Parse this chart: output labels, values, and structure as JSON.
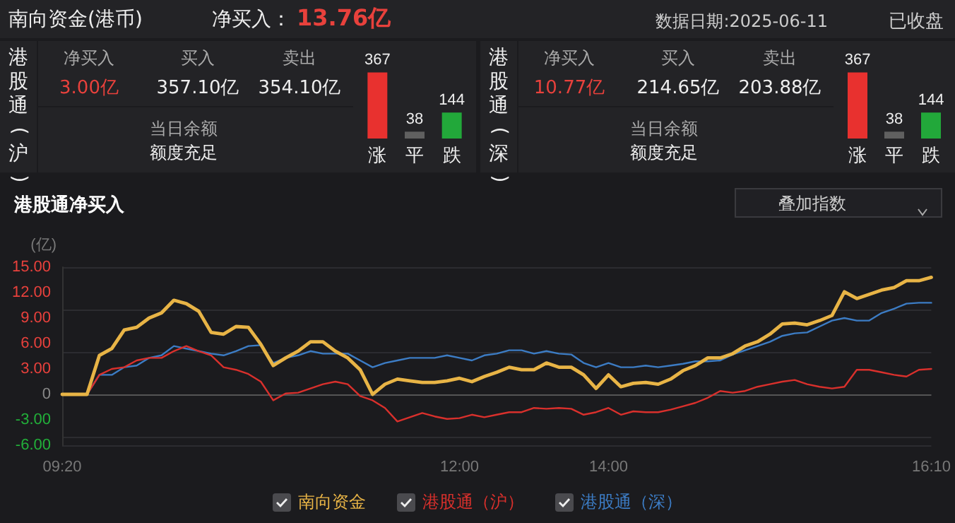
{
  "chart_data": [
    {
      "type": "other",
      "title": "南向资金(港币)",
      "annotations": [
        "净买入：",
        "13.76亿",
        "数据日期:2025-06-11",
        "已收盘"
      ]
    },
    {
      "type": "other",
      "title": "港股通(沪)",
      "annotations": [
        "净买入",
        "3.00亿",
        "买入",
        "357.10亿",
        "卖出",
        "354.10亿",
        "当日余额",
        "额度充足"
      ]
    },
    {
      "type": "bar",
      "categories": [
        "涨",
        "平",
        "跌"
      ],
      "values": [
        367,
        38,
        144
      ],
      "colors": [
        "#e8312f",
        "#606060",
        "#22a83a"
      ],
      "data_labels": true,
      "tick_labels": "x"
    },
    {
      "type": "other",
      "title": "港股通(深)",
      "annotations": [
        "净买入",
        "10.77亿",
        "买入",
        "214.65亿",
        "卖出",
        "203.88亿",
        "当日余额",
        "额度充足"
      ]
    },
    {
      "type": "bar",
      "categories": [
        "涨",
        "平",
        "跌"
      ],
      "values": [
        367,
        38,
        144
      ],
      "colors": [
        "#e8312f",
        "#606060",
        "#22a83a"
      ],
      "data_labels": true,
      "tick_labels": "x"
    },
    {
      "type": "line",
      "title": "港股通净买入",
      "ylabel": "(亿)",
      "annotations": [
        "叠加指数"
      ],
      "categories": [
        "09:20",
        null,
        null,
        null,
        null,
        null,
        null,
        null,
        null,
        null,
        null,
        null,
        null,
        null,
        null,
        null,
        null,
        null,
        null,
        null,
        null,
        null,
        null,
        null,
        null,
        null,
        null,
        null,
        null,
        null,
        null,
        null,
        "12:00",
        null,
        null,
        null,
        null,
        null,
        null,
        null,
        null,
        null,
        null,
        null,
        "14:00",
        null,
        null,
        null,
        null,
        null,
        null,
        null,
        null,
        null,
        null,
        null,
        null,
        null,
        null,
        null,
        null,
        null,
        null,
        null,
        null,
        null,
        null,
        null,
        null,
        null,
        "16:10"
      ],
      "series": [
        {
          "name": "南向资金",
          "color": "#e8b446",
          "values": [
            0,
            0,
            0,
            4.6,
            5.4,
            7.6,
            7.9,
            9.0,
            9.6,
            11.1,
            10.7,
            9.8,
            7.3,
            7.1,
            8.0,
            7.9,
            5.9,
            3.4,
            4.3,
            5.1,
            6.2,
            6.2,
            5.1,
            4.3,
            2.9,
            0,
            1.2,
            1.8,
            1.6,
            1.4,
            1.4,
            1.6,
            1.9,
            1.5,
            2.1,
            2.6,
            3.2,
            2.9,
            2.9,
            3.7,
            3.2,
            3.2,
            2.3,
            0.7,
            2.3,
            0.9,
            1.3,
            1.4,
            1.2,
            1.8,
            2.8,
            3.4,
            4.3,
            4.3,
            4.8,
            5.7,
            6.2,
            7.1,
            8.3,
            8.4,
            8.2,
            8.7,
            9.3,
            12.1,
            11.3,
            11.8,
            12.3,
            12.6,
            13.4,
            13.4,
            13.8
          ]
        },
        {
          "name": "港股通（沪）",
          "color": "#d9302c",
          "values": [
            0,
            0,
            0,
            2.3,
            3.0,
            3.2,
            4.0,
            4.3,
            4.3,
            5.1,
            5.7,
            5.1,
            4.6,
            3.2,
            2.9,
            2.4,
            1.5,
            -0.7,
            0.1,
            0.2,
            0.7,
            1.2,
            1.5,
            1.2,
            -0.2,
            -0.7,
            -1.6,
            -3.2,
            -2.7,
            -2.2,
            -2.6,
            -2.9,
            -2.8,
            -2.4,
            -2.7,
            -2.4,
            -2.1,
            -2.1,
            -1.6,
            -1.7,
            -1.6,
            -1.7,
            -2.4,
            -2.1,
            -1.6,
            -2.4,
            -2.0,
            -2.1,
            -2.1,
            -1.8,
            -1.4,
            -1.0,
            -0.4,
            0.4,
            0.2,
            0.4,
            0.9,
            1.2,
            1.5,
            1.7,
            1.2,
            0.9,
            0.7,
            0.9,
            2.9,
            2.9,
            2.6,
            2.3,
            2.1,
            2.9,
            3.0
          ]
        },
        {
          "name": "港股通（深）",
          "color": "#3c7cc4",
          "values": [
            null,
            null,
            0,
            2.3,
            2.3,
            3.2,
            3.4,
            4.3,
            4.6,
            5.7,
            5.4,
            5.1,
            4.8,
            4.6,
            5.1,
            5.7,
            5.8,
            3.7,
            4.3,
            4.6,
            5.1,
            4.8,
            4.8,
            4.8,
            4.0,
            3.2,
            3.7,
            4.0,
            4.3,
            4.3,
            4.3,
            4.6,
            4.3,
            4.0,
            4.6,
            4.8,
            5.2,
            5.2,
            4.8,
            5.1,
            4.8,
            4.7,
            3.7,
            3.2,
            3.7,
            3.2,
            3.2,
            3.4,
            3.2,
            3.4,
            3.6,
            3.9,
            3.9,
            4.0,
            4.7,
            5.2,
            5.7,
            6.2,
            6.9,
            7.2,
            7.3,
            8.0,
            8.7,
            9.0,
            8.7,
            8.7,
            9.6,
            10.1,
            10.7,
            10.8,
            10.8
          ]
        }
      ],
      "ylim": [
        -6,
        15
      ],
      "yticks": [
        {
          "value": -6,
          "label": "-6.00"
        },
        {
          "value": -3,
          "label": "-3.00"
        },
        0,
        {
          "value": 3,
          "label": "3.00"
        },
        {
          "value": 6,
          "label": "6.00"
        },
        {
          "value": 9,
          "label": "9.00"
        },
        {
          "value": 12,
          "label": "12.00"
        },
        {
          "value": 15,
          "label": "15.00"
        }
      ],
      "grid": "y",
      "legend": "bottom"
    }
  ]
}
